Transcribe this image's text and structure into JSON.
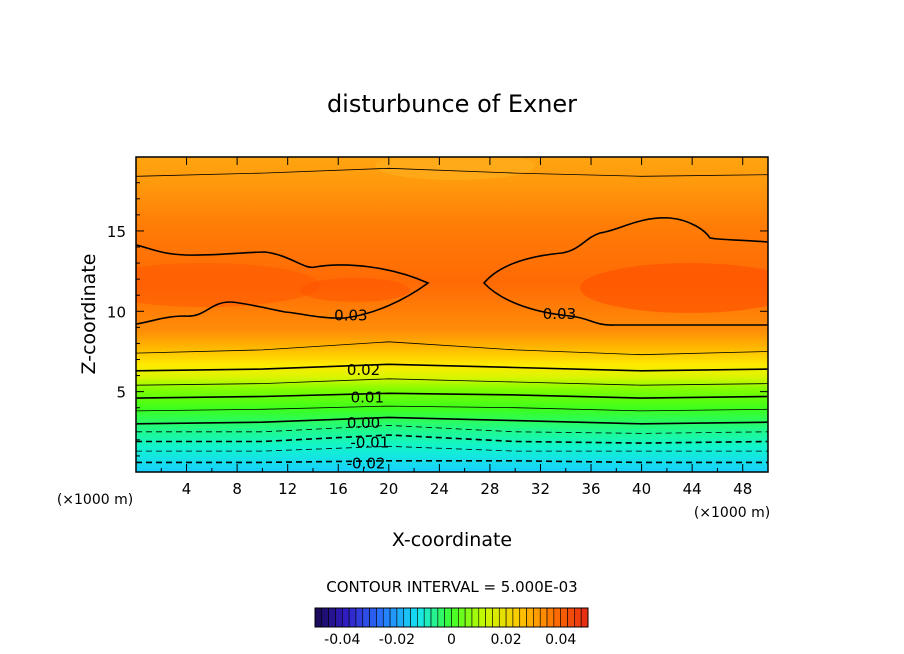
{
  "chart_data": {
    "type": "heatmap",
    "title": "disturbunce of Exner",
    "xlabel": "X-coordinate",
    "ylabel": "Z-coordinate",
    "x_unit": "(×1000 m)",
    "y_unit": "(×1000 m)",
    "xlim": [
      0,
      50
    ],
    "ylim": [
      0,
      19.6
    ],
    "x_ticks": [
      "4",
      "8",
      "12",
      "16",
      "20",
      "24",
      "28",
      "32",
      "36",
      "40",
      "44",
      "48"
    ],
    "y_ticks": [
      "5",
      "10",
      "15"
    ],
    "contour_interval_label": "CONTOUR INTERVAL = 5.000E-03",
    "contour_interval": 0.005,
    "contours": [
      {
        "level": -0.02,
        "label": "-0.02",
        "label_x": 18.2,
        "z": [
          0.6,
          0.6,
          0.7,
          0.7,
          0.6,
          0.6
        ]
      },
      {
        "level": -0.015,
        "label": "",
        "z": [
          1.3,
          1.3,
          1.6,
          1.3,
          1.3,
          1.3
        ]
      },
      {
        "level": -0.01,
        "label": "-0.01",
        "label_x": 18.5,
        "z": [
          1.9,
          1.9,
          2.3,
          1.9,
          1.8,
          1.9
        ]
      },
      {
        "level": -0.005,
        "label": "",
        "z": [
          2.5,
          2.5,
          2.9,
          2.5,
          2.4,
          2.5
        ]
      },
      {
        "level": 0.0,
        "label": "0.00",
        "label_x": 18.0,
        "z": [
          3.0,
          3.1,
          3.4,
          3.2,
          3.0,
          3.1
        ]
      },
      {
        "level": 0.005,
        "label": "",
        "z": [
          3.8,
          3.9,
          4.1,
          4.0,
          3.8,
          3.9
        ]
      },
      {
        "level": 0.01,
        "label": "0.01",
        "label_x": 18.3,
        "z": [
          4.6,
          4.7,
          4.9,
          4.8,
          4.6,
          4.7
        ]
      },
      {
        "level": 0.015,
        "label": "",
        "z": [
          5.4,
          5.5,
          5.8,
          5.6,
          5.4,
          5.5
        ]
      },
      {
        "level": 0.02,
        "label": "0.02",
        "label_x": 18.0,
        "z": [
          6.3,
          6.4,
          6.7,
          6.5,
          6.3,
          6.4
        ]
      },
      {
        "level": 0.025,
        "label": "",
        "z": [
          7.4,
          7.6,
          8.1,
          7.6,
          7.3,
          7.5
        ]
      },
      {
        "level": 0.035,
        "label": "",
        "z": [
          18.4,
          18.6,
          18.9,
          18.6,
          18.4,
          18.5
        ]
      }
    ],
    "closed_contours": [
      {
        "level": 0.03,
        "label": "0.03",
        "label_x": 17.0,
        "label_z": 9.8
      },
      {
        "level": 0.03,
        "label": "0.03",
        "label_x": 33.5,
        "label_z": 9.9
      }
    ],
    "colorbar": {
      "ticks": [
        "-0.04",
        "-0.02",
        "0",
        "0.02",
        "0.04"
      ],
      "range": [
        -0.05,
        0.05
      ]
    }
  }
}
